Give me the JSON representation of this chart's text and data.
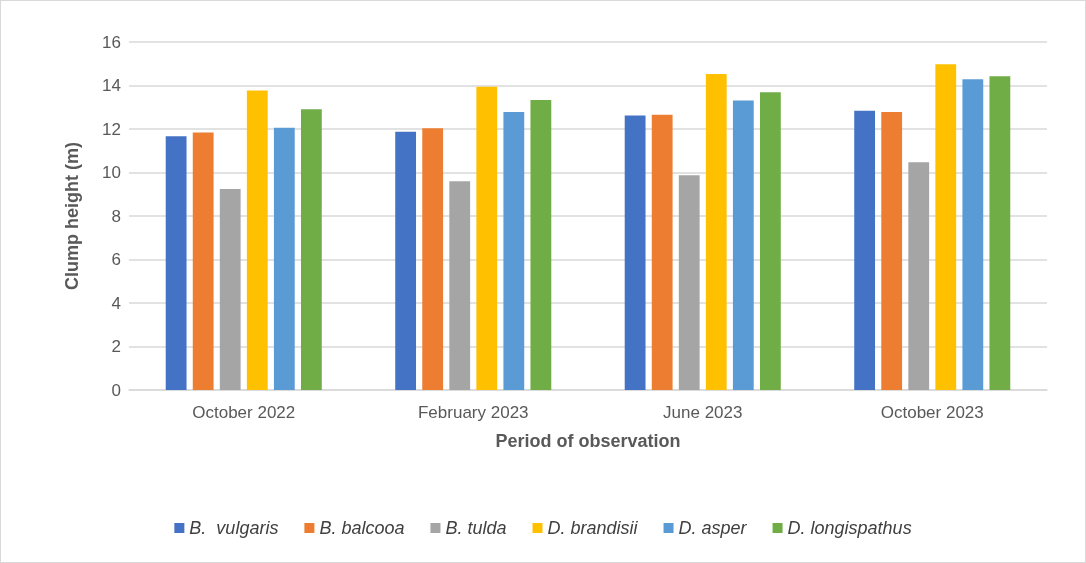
{
  "chart_data": {
    "type": "bar",
    "xlabel": "Period of observation",
    "ylabel": "Clump height (m)",
    "categories": [
      "October 2022",
      "February 2023",
      "June 2023",
      "October 2023"
    ],
    "series": [
      {
        "name": "B.  vulgaris",
        "color": "#4472c4",
        "values": [
          11.67,
          11.87,
          12.62,
          12.84
        ]
      },
      {
        "name": "B. balcooa",
        "color": "#ed7d31",
        "values": [
          11.84,
          12.03,
          12.65,
          12.78
        ]
      },
      {
        "name": "B. tulda",
        "color": "#a5a5a5",
        "values": [
          9.24,
          9.6,
          9.87,
          10.47
        ]
      },
      {
        "name": "D. brandisii",
        "color": "#ffc000",
        "values": [
          13.77,
          13.94,
          14.53,
          14.98
        ]
      },
      {
        "name": "D. asper",
        "color": "#5b9bd5",
        "values": [
          12.06,
          12.78,
          13.31,
          14.29
        ]
      },
      {
        "name": "D. longispathus",
        "color": "#70ad47",
        "values": [
          12.91,
          13.33,
          13.69,
          14.43
        ]
      }
    ],
    "ylim": [
      0,
      16
    ],
    "yticks": [
      0,
      2,
      4,
      6,
      8,
      10,
      12,
      14,
      16
    ],
    "grid": "y",
    "legend": "bottom"
  }
}
